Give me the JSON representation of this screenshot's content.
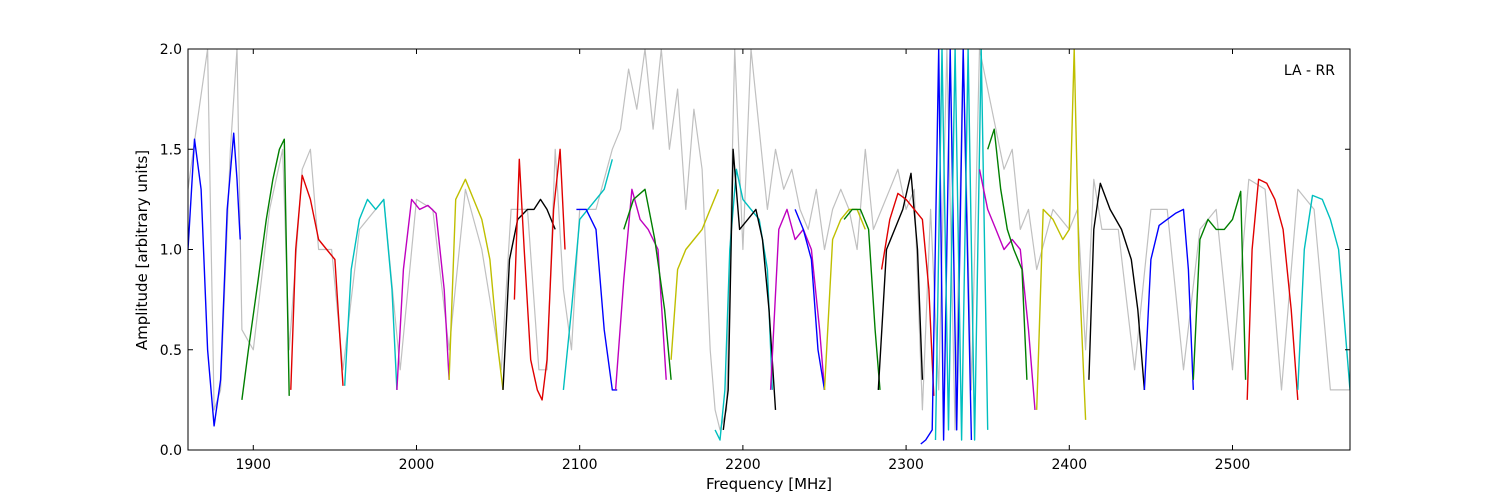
{
  "chart_data": {
    "type": "line",
    "title": "",
    "xlabel": "Frequency [MHz]",
    "ylabel": "Amplitude [arbitrary units]",
    "xlim": [
      1860,
      2572
    ],
    "ylim": [
      0.0,
      2.0
    ],
    "xticks": [
      1900,
      2000,
      2100,
      2200,
      2300,
      2400,
      2500
    ],
    "yticks": [
      0.0,
      0.5,
      1.0,
      1.5,
      2.0
    ],
    "xtick_labels": [
      "1900",
      "2000",
      "2100",
      "2200",
      "2300",
      "2400",
      "2500"
    ],
    "ytick_labels": [
      "0.0",
      "0.5",
      "1.0",
      "1.5",
      "2.0"
    ],
    "annotation": "LA - RR",
    "annotation_position": "top-right",
    "grid": false,
    "colors": {
      "b": "#0000ff",
      "g": "#007f00",
      "r": "#e00000",
      "c": "#00bfbf",
      "m": "#bf00bf",
      "y": "#bfbf00",
      "k": "#000000",
      "background": "#c0c0c0"
    },
    "background_trace": {
      "name": "",
      "color": "#c0c0c0",
      "x": [
        1860,
        1865,
        1872,
        1876,
        1880,
        1886,
        1890,
        1893,
        1900,
        1910,
        1918,
        1922,
        1930,
        1935,
        1940,
        1948,
        1955,
        1965,
        1980,
        1990,
        2000,
        2010,
        2020,
        2030,
        2040,
        2052,
        2058,
        2068,
        2075,
        2080,
        2085,
        2090,
        2095,
        2100,
        2110,
        2120,
        2125,
        2130,
        2135,
        2140,
        2145,
        2150,
        2155,
        2160,
        2165,
        2170,
        2175,
        2180,
        2183,
        2186,
        2190,
        2195,
        2200,
        2205,
        2210,
        2215,
        2220,
        2225,
        2230,
        2235,
        2240,
        2245,
        2250,
        2255,
        2260,
        2265,
        2270,
        2275,
        2280,
        2285,
        2290,
        2295,
        2300,
        2305,
        2310,
        2315,
        2320,
        2325,
        2330,
        2335,
        2340,
        2345,
        2350,
        2355,
        2360,
        2365,
        2370,
        2375,
        2380,
        2390,
        2400,
        2405,
        2410,
        2415,
        2420,
        2430,
        2440,
        2450,
        2460,
        2470,
        2480,
        2490,
        2500,
        2510,
        2520,
        2530,
        2540,
        2550,
        2560,
        2572
      ],
      "y": [
        1.3,
        1.6,
        2.0,
        0.2,
        0.3,
        1.5,
        2.0,
        0.6,
        0.5,
        1.2,
        1.5,
        0.5,
        1.4,
        1.5,
        1.0,
        1.0,
        0.4,
        1.1,
        1.25,
        0.4,
        1.25,
        1.2,
        0.5,
        1.3,
        1.0,
        0.4,
        1.2,
        1.2,
        0.4,
        0.4,
        1.5,
        0.8,
        0.5,
        1.2,
        1.2,
        1.5,
        1.6,
        1.9,
        1.7,
        2.0,
        1.6,
        2.0,
        1.5,
        1.8,
        1.2,
        1.7,
        1.4,
        0.5,
        0.2,
        0.1,
        0.2,
        2.0,
        1.0,
        2.0,
        1.6,
        1.2,
        1.5,
        1.3,
        1.4,
        1.2,
        1.1,
        1.3,
        1.0,
        1.2,
        1.3,
        1.2,
        1.0,
        1.5,
        1.1,
        1.2,
        1.3,
        1.4,
        1.2,
        1.3,
        0.2,
        1.2,
        0.3,
        2.0,
        0.1,
        2.0,
        0.3,
        2.0,
        1.8,
        1.6,
        1.4,
        1.5,
        1.1,
        1.2,
        0.9,
        1.2,
        1.1,
        1.2,
        0.5,
        1.35,
        1.1,
        1.1,
        0.4,
        1.2,
        1.2,
        0.4,
        1.1,
        1.2,
        0.4,
        1.35,
        1.3,
        0.3,
        1.3,
        1.2,
        0.3,
        0.3
      ]
    },
    "series": [
      {
        "color": "b",
        "x": [
          1860,
          1864,
          1868,
          1872,
          1876,
          1880,
          1884,
          1888,
          1890,
          1892
        ],
        "y": [
          1.0,
          1.55,
          1.3,
          0.5,
          0.12,
          0.35,
          1.2,
          1.58,
          1.35,
          1.05
        ]
      },
      {
        "color": "g",
        "x": [
          1893,
          1897,
          1903,
          1908,
          1912,
          1916,
          1919,
          1922
        ],
        "y": [
          0.25,
          0.5,
          0.85,
          1.15,
          1.35,
          1.5,
          1.55,
          0.27
        ]
      },
      {
        "color": "r",
        "x": [
          1923,
          1926,
          1930,
          1935,
          1940,
          1945,
          1950,
          1955
        ],
        "y": [
          0.3,
          1.0,
          1.37,
          1.25,
          1.05,
          1.0,
          0.95,
          0.32
        ]
      },
      {
        "color": "c",
        "x": [
          1956,
          1960,
          1965,
          1970,
          1975,
          1980,
          1985,
          1988
        ],
        "y": [
          0.32,
          0.9,
          1.15,
          1.25,
          1.2,
          1.25,
          0.8,
          0.3
        ]
      },
      {
        "color": "m",
        "x": [
          1988,
          1992,
          1997,
          2002,
          2007,
          2012,
          2017,
          2020
        ],
        "y": [
          0.3,
          0.9,
          1.25,
          1.2,
          1.22,
          1.18,
          0.8,
          0.35
        ]
      },
      {
        "color": "y",
        "x": [
          2020,
          2024,
          2030,
          2035,
          2040,
          2045,
          2050,
          2053
        ],
        "y": [
          0.35,
          1.25,
          1.35,
          1.25,
          1.15,
          0.95,
          0.5,
          0.3
        ]
      },
      {
        "color": "k",
        "x": [
          2053,
          2057,
          2062,
          2068,
          2072,
          2076,
          2080,
          2085
        ],
        "y": [
          0.3,
          0.95,
          1.15,
          1.2,
          1.2,
          1.25,
          1.2,
          1.1
        ]
      },
      {
        "color": "r",
        "x": [
          2060,
          2063,
          2066,
          2070,
          2074,
          2077,
          2080,
          2084,
          2088,
          2091
        ],
        "y": [
          0.75,
          1.45,
          1.0,
          0.45,
          0.3,
          0.25,
          0.45,
          1.2,
          1.5,
          1.0
        ]
      },
      {
        "color": "c",
        "x": [
          2090,
          2095,
          2100,
          2105,
          2110,
          2115,
          2120
        ],
        "y": [
          0.3,
          0.7,
          1.15,
          1.2,
          1.25,
          1.3,
          1.45
        ]
      },
      {
        "color": "b",
        "x": [
          2098,
          2104,
          2110,
          2115,
          2120,
          2123
        ],
        "y": [
          1.2,
          1.2,
          1.1,
          0.6,
          0.3,
          0.3
        ]
      },
      {
        "color": "m",
        "x": [
          2122,
          2127,
          2132,
          2137,
          2142,
          2148,
          2153
        ],
        "y": [
          0.3,
          0.85,
          1.3,
          1.15,
          1.1,
          1.0,
          0.35
        ]
      },
      {
        "color": "g",
        "x": [
          2127,
          2133,
          2140,
          2146,
          2152,
          2156
        ],
        "y": [
          1.1,
          1.25,
          1.3,
          1.05,
          0.7,
          0.35
        ]
      },
      {
        "color": "y",
        "x": [
          2156,
          2160,
          2165,
          2170,
          2175,
          2180,
          2185
        ],
        "y": [
          0.45,
          0.9,
          1.0,
          1.05,
          1.1,
          1.2,
          1.3
        ]
      },
      {
        "color": "c",
        "x": [
          2183,
          2186,
          2189,
          2192,
          2196,
          2200,
          2205,
          2210,
          2215,
          2218
        ],
        "y": [
          0.1,
          0.05,
          0.3,
          1.0,
          1.4,
          1.25,
          1.2,
          1.15,
          0.9,
          0.3
        ]
      },
      {
        "color": "k",
        "x": [
          2188,
          2191,
          2194,
          2198,
          2203,
          2208,
          2212,
          2216,
          2220
        ],
        "y": [
          0.1,
          0.3,
          1.5,
          1.1,
          1.15,
          1.2,
          1.05,
          0.7,
          0.2
        ]
      },
      {
        "color": "m",
        "x": [
          2217,
          2222,
          2227,
          2232,
          2237,
          2242,
          2247,
          2250
        ],
        "y": [
          0.3,
          1.1,
          1.2,
          1.05,
          1.1,
          1.0,
          0.6,
          0.3
        ]
      },
      {
        "color": "b",
        "x": [
          2232,
          2237,
          2242,
          2246,
          2250
        ],
        "y": [
          1.2,
          1.1,
          0.95,
          0.5,
          0.3
        ]
      },
      {
        "color": "y",
        "x": [
          2250,
          2255,
          2260,
          2265,
          2270,
          2275
        ],
        "y": [
          0.3,
          1.05,
          1.15,
          1.2,
          1.2,
          1.1
        ]
      },
      {
        "color": "g",
        "x": [
          2262,
          2267,
          2272,
          2277,
          2281,
          2284
        ],
        "y": [
          1.15,
          1.2,
          1.2,
          1.1,
          0.6,
          0.3
        ]
      },
      {
        "color": "k",
        "x": [
          2283,
          2288,
          2293,
          2298,
          2303,
          2307,
          2310
        ],
        "y": [
          0.3,
          1.0,
          1.1,
          1.2,
          1.38,
          1.0,
          0.35
        ]
      },
      {
        "color": "r",
        "x": [
          2285,
          2290,
          2295,
          2300,
          2305,
          2310,
          2314,
          2317
        ],
        "y": [
          0.9,
          1.15,
          1.28,
          1.25,
          1.2,
          1.15,
          0.8,
          0.27
        ]
      },
      {
        "color": "b",
        "x": [
          2309,
          2312,
          2316,
          2320,
          2323,
          2327,
          2331,
          2335,
          2340
        ],
        "y": [
          0.03,
          0.05,
          0.1,
          2.0,
          0.05,
          2.0,
          0.1,
          2.0,
          0.05
        ]
      },
      {
        "color": "c",
        "x": [
          2318,
          2322,
          2326,
          2330,
          2334,
          2338,
          2342,
          2346,
          2350
        ],
        "y": [
          0.05,
          2.0,
          0.1,
          2.0,
          0.05,
          2.0,
          0.05,
          2.0,
          0.1
        ]
      },
      {
        "color": "m",
        "x": [
          2345,
          2350,
          2355,
          2360,
          2365,
          2370,
          2375,
          2379
        ],
        "y": [
          1.4,
          1.2,
          1.1,
          1.0,
          1.05,
          1.0,
          0.6,
          0.2
        ]
      },
      {
        "color": "g",
        "x": [
          2350,
          2354,
          2358,
          2362,
          2366,
          2371,
          2374
        ],
        "y": [
          1.5,
          1.6,
          1.3,
          1.1,
          1.0,
          0.9,
          0.35
        ]
      },
      {
        "color": "y",
        "x": [
          2380,
          2384,
          2390,
          2396,
          2400,
          2403,
          2406,
          2410
        ],
        "y": [
          0.2,
          1.2,
          1.15,
          1.05,
          1.1,
          2.0,
          0.9,
          0.15
        ]
      },
      {
        "color": "k",
        "x": [
          2412,
          2415,
          2419,
          2425,
          2432,
          2438,
          2442,
          2446
        ],
        "y": [
          0.35,
          1.1,
          1.33,
          1.2,
          1.1,
          0.95,
          0.7,
          0.3
        ]
      },
      {
        "color": "b",
        "x": [
          2446,
          2450,
          2455,
          2460,
          2465,
          2470,
          2473,
          2476
        ],
        "y": [
          0.3,
          0.95,
          1.12,
          1.15,
          1.18,
          1.2,
          0.9,
          0.3
        ]
      },
      {
        "color": "g",
        "x": [
          2476,
          2480,
          2485,
          2490,
          2495,
          2500,
          2505,
          2508
        ],
        "y": [
          0.35,
          1.05,
          1.15,
          1.1,
          1.1,
          1.15,
          1.29,
          0.35
        ]
      },
      {
        "color": "r",
        "x": [
          2509,
          2512,
          2516,
          2521,
          2526,
          2531,
          2536,
          2540
        ],
        "y": [
          0.25,
          1.0,
          1.35,
          1.33,
          1.25,
          1.1,
          0.7,
          0.25
        ]
      },
      {
        "color": "c",
        "x": [
          2540,
          2544,
          2549,
          2555,
          2560,
          2565,
          2572
        ],
        "y": [
          0.3,
          1.0,
          1.27,
          1.25,
          1.15,
          1.0,
          0.3
        ]
      }
    ]
  }
}
